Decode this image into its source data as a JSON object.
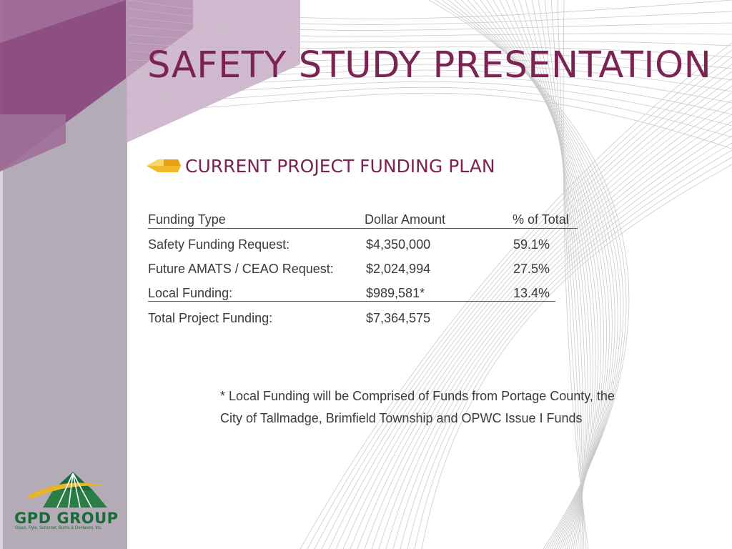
{
  "slide": {
    "title": "SAFETY STUDY PRESENTATION",
    "subtitle": "CURRENT PROJECT FUNDING PLAN"
  },
  "table": {
    "headers": [
      "Funding Type",
      "Dollar Amount",
      "% of Total"
    ],
    "rows": [
      [
        "Safety Funding Request:",
        "$4,350,000",
        "59.1%"
      ],
      [
        "Future AMATS / CEAO Request:",
        "$2,024,994",
        "27.5%"
      ],
      [
        "Local Funding:",
        "$989,581*",
        "13.4%"
      ],
      [
        "Total Project Funding:",
        "$7,364,575",
        ""
      ]
    ]
  },
  "note": {
    "line1": "* Local Funding will be Comprised of Funds from Portage County, the",
    "line2": "City of Tallmadge,  Brimfield Township and OPWC Issue I Funds"
  },
  "logo": {
    "name": "GPD GROUP",
    "tagline": "Glaus, Pyle, Schomer, Burns & DeHaven, Inc."
  },
  "colors": {
    "accent": "#7b2352",
    "purple_band": "#8b4a80",
    "side_panel": "#b3abb5",
    "bullet_gold": "#f2b928",
    "logo_green": "#1a6b3a"
  }
}
